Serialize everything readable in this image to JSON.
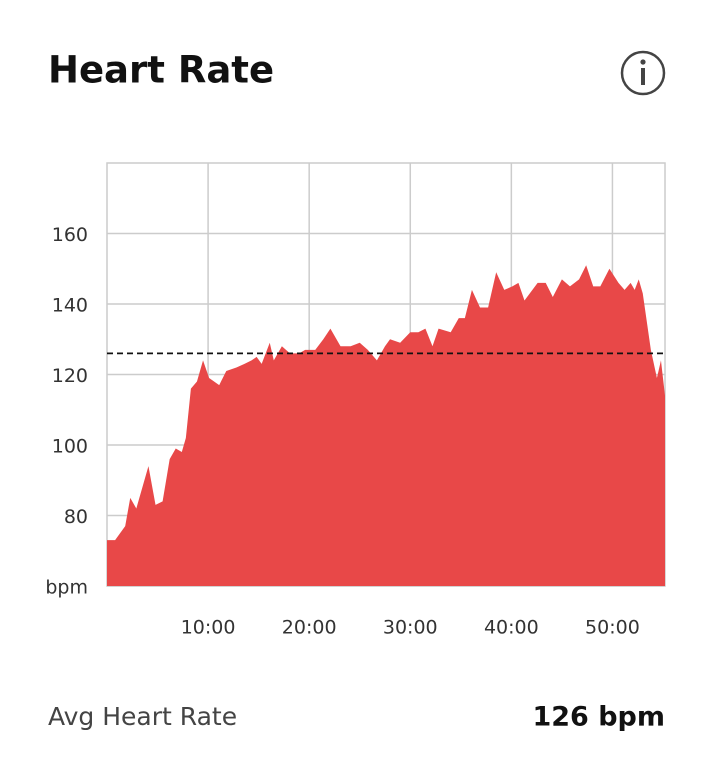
{
  "chart_data": {
    "type": "area",
    "title": "Heart Rate",
    "x": [
      0,
      0.8,
      1.8,
      2.3,
      2.9,
      4.1,
      4.8,
      5.5,
      6.2,
      6.8,
      7.4,
      7.8,
      8.3,
      8.9,
      9.5,
      10.1,
      11.1,
      11.8,
      12.8,
      13.6,
      14.3,
      14.8,
      15.3,
      16.1,
      16.5,
      17.3,
      18.1,
      19.0,
      19.6,
      20.6,
      21.4,
      22.1,
      23.1,
      24.1,
      25.0,
      25.8,
      26.7,
      27.5,
      28.0,
      29.0,
      30.0,
      30.8,
      31.5,
      32.2,
      32.8,
      34.0,
      34.8,
      35.4,
      36.1,
      36.9,
      37.7,
      38.5,
      39.3,
      40.1,
      40.7,
      41.3,
      42.6,
      43.4,
      44.1,
      45.0,
      45.8,
      46.7,
      47.4,
      48.1,
      48.8,
      49.7,
      50.6,
      51.2,
      51.8,
      52.2,
      52.6,
      53.0,
      53.8,
      54.4,
      54.8,
      55.2
    ],
    "series": [
      {
        "color": "#e84848",
        "values": [
          73,
          73,
          77,
          85,
          82,
          94,
          83,
          84,
          96,
          99,
          98,
          102,
          116,
          118,
          124,
          119,
          117,
          121,
          122,
          123,
          124,
          125,
          123,
          129,
          124,
          128,
          126,
          126,
          127,
          127,
          130,
          133,
          128,
          128,
          129,
          127,
          124,
          128,
          130,
          129,
          132,
          132,
          133,
          128,
          133,
          132,
          136,
          136,
          144,
          139,
          139,
          149,
          144,
          145,
          146,
          141,
          146,
          146,
          142,
          147,
          145,
          147,
          151,
          145,
          145,
          150,
          146,
          144,
          146,
          144,
          147,
          143,
          127,
          119,
          124,
          114
        ]
      }
    ],
    "xlim": [
      0,
      55.2
    ],
    "xticks": [
      {
        "value": 10,
        "label": "10:00"
      },
      {
        "value": 20,
        "label": "20:00"
      },
      {
        "value": 30,
        "label": "30:00"
      },
      {
        "value": 40,
        "label": "40:00"
      },
      {
        "value": 50,
        "label": "50:00"
      }
    ],
    "ylim": [
      60,
      180
    ],
    "yticks": [
      {
        "value": 60,
        "label": "bpm"
      },
      80,
      100,
      120,
      140,
      160
    ],
    "grid": true,
    "average": {
      "label": "Avg Heart Rate",
      "value": 126,
      "value_label": "126 bpm"
    }
  }
}
